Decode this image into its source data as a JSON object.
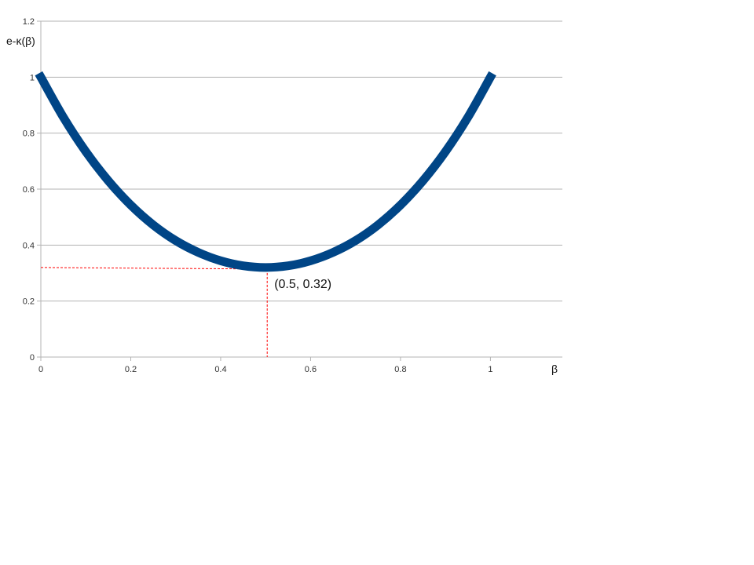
{
  "chart_data": {
    "type": "line",
    "title": "",
    "xlabel": "β",
    "ylabel": "e-κ(β)",
    "xlim": [
      0,
      1.16
    ],
    "ylim": [
      0,
      1.2
    ],
    "x_ticks": [
      0,
      0.2,
      0.4,
      0.6,
      0.8,
      1
    ],
    "x_tick_labels": [
      "0",
      "0.2",
      "0.4",
      "0.6",
      "0.8",
      "1"
    ],
    "y_ticks": [
      0,
      0.2,
      0.4,
      0.6,
      0.8,
      1,
      1.2
    ],
    "y_tick_labels": [
      "0",
      "0.2",
      "0.4",
      "0.6",
      "0.8",
      "1",
      "1.2"
    ],
    "grid": "horizontal",
    "series": [
      {
        "name": "e-κ(β)",
        "color": "#004586",
        "x": [
          0,
          0.05,
          0.1,
          0.15,
          0.2,
          0.25,
          0.3,
          0.35,
          0.4,
          0.45,
          0.5,
          0.55,
          0.6,
          0.65,
          0.7,
          0.75,
          0.8,
          0.85,
          0.9,
          0.95,
          1
        ],
        "y": [
          1,
          0.857,
          0.734,
          0.63,
          0.543,
          0.472,
          0.416,
          0.374,
          0.344,
          0.326,
          0.32,
          0.326,
          0.344,
          0.374,
          0.416,
          0.472,
          0.543,
          0.63,
          0.734,
          0.857,
          1
        ]
      }
    ],
    "annotations": [
      {
        "text": "(0.5, 0.32)",
        "x": 0.5,
        "y": 0.32,
        "guide_color": "#ff0000",
        "guide_style": "dashed"
      }
    ]
  }
}
